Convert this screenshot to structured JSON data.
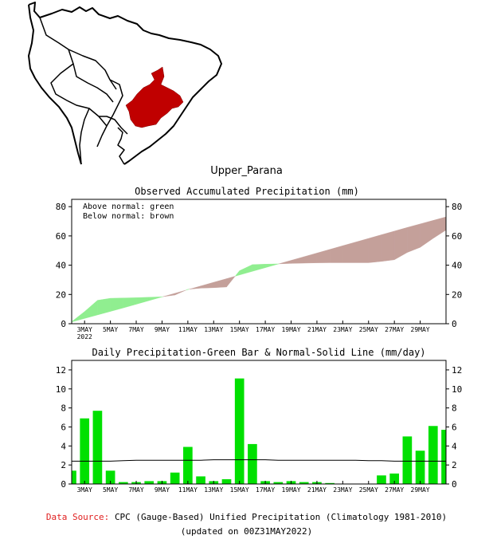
{
  "region_name": "Upper_Parana",
  "colors": {
    "above_normal": "#90ee90",
    "below_normal": "#c4a09a",
    "bar": "#00e000",
    "region_fill": "#c00000",
    "source_label": "#e02020"
  },
  "legend": {
    "above": "Above normal: green",
    "below": "Below normal: brown"
  },
  "x_labels": [
    {
      "day": 3,
      "label": "3MAY",
      "year": "2022"
    },
    {
      "day": 5,
      "label": "5MAY"
    },
    {
      "day": 7,
      "label": "7MAY"
    },
    {
      "day": 9,
      "label": "9MAY"
    },
    {
      "day": 11,
      "label": "11MAY"
    },
    {
      "day": 13,
      "label": "13MAY"
    },
    {
      "day": 15,
      "label": "15MAY"
    },
    {
      "day": 17,
      "label": "17MAY"
    },
    {
      "day": 19,
      "label": "19MAY"
    },
    {
      "day": 21,
      "label": "21MAY"
    },
    {
      "day": 23,
      "label": "23MAY"
    },
    {
      "day": 25,
      "label": "25MAY"
    },
    {
      "day": 27,
      "label": "27MAY"
    },
    {
      "day": 29,
      "label": "29MAY"
    }
  ],
  "chart_data": [
    {
      "type": "area",
      "title": "Observed Accumulated Precipitation (mm)",
      "xlabel": "",
      "ylabel": "",
      "xlim": [
        2,
        31
      ],
      "ylim": [
        0,
        85
      ],
      "yticks": [
        0,
        20,
        40,
        60,
        80
      ],
      "series": [
        {
          "name": "Observed accumulated",
          "x": [
            2,
            3,
            4,
            5,
            6,
            7,
            8,
            9,
            10,
            11,
            12,
            13,
            14,
            15,
            16,
            17,
            18,
            19,
            20,
            21,
            22,
            23,
            24,
            25,
            26,
            27,
            28,
            29,
            30,
            31
          ],
          "values": [
            1.4,
            8.3,
            16.0,
            17.4,
            17.6,
            17.8,
            18.1,
            18.4,
            19.6,
            23.5,
            24.3,
            24.6,
            25.1,
            36.2,
            40.4,
            40.7,
            40.9,
            41.2,
            41.4,
            41.6,
            41.7,
            41.7,
            41.7,
            41.7,
            42.6,
            43.7,
            48.7,
            52.2,
            58.3,
            64.0
          ]
        },
        {
          "name": "Normal accumulated",
          "x": [
            2,
            3,
            4,
            5,
            6,
            7,
            8,
            9,
            10,
            11,
            12,
            13,
            14,
            15,
            16,
            17,
            18,
            19,
            20,
            21,
            22,
            23,
            24,
            25,
            26,
            27,
            28,
            29,
            30,
            31
          ],
          "values": [
            1.2,
            3.6,
            6.0,
            8.4,
            10.8,
            13.3,
            15.8,
            18.3,
            20.8,
            23.3,
            25.8,
            28.3,
            30.8,
            33.3,
            35.8,
            38.3,
            40.8,
            43.3,
            45.8,
            48.3,
            50.8,
            53.3,
            55.8,
            58.3,
            60.8,
            63.3,
            65.8,
            68.2,
            70.6,
            73.0
          ]
        }
      ]
    },
    {
      "type": "bar",
      "title": "Daily Precipitation-Green Bar & Normal-Solid Line (mm/day)",
      "xlabel": "",
      "ylabel": "",
      "xlim": [
        2,
        31
      ],
      "ylim": [
        0,
        13
      ],
      "yticks": [
        0,
        2,
        4,
        6,
        8,
        10,
        12
      ],
      "categories": [
        2,
        3,
        4,
        5,
        6,
        7,
        8,
        9,
        10,
        11,
        12,
        13,
        14,
        15,
        16,
        17,
        18,
        19,
        20,
        21,
        22,
        23,
        24,
        25,
        26,
        27,
        28,
        29,
        30,
        31
      ],
      "series": [
        {
          "name": "Daily precipitation",
          "values": [
            1.4,
            6.9,
            7.7,
            1.4,
            0.2,
            0.2,
            0.3,
            0.3,
            1.2,
            3.9,
            0.8,
            0.3,
            0.5,
            11.1,
            4.2,
            0.3,
            0.2,
            0.3,
            0.2,
            0.2,
            0.1,
            0,
            0,
            0,
            0.9,
            1.1,
            5.0,
            3.5,
            6.1,
            5.7
          ]
        },
        {
          "name": "Normal",
          "values": [
            2.4,
            2.4,
            2.4,
            2.4,
            2.45,
            2.5,
            2.5,
            2.5,
            2.5,
            2.5,
            2.5,
            2.55,
            2.55,
            2.55,
            2.55,
            2.55,
            2.5,
            2.5,
            2.5,
            2.5,
            2.5,
            2.5,
            2.5,
            2.45,
            2.45,
            2.4,
            2.4,
            2.4,
            2.4,
            2.4
          ]
        }
      ]
    }
  ],
  "footer": {
    "source_label": "Data Source:",
    "source_text": "CPC (Gauge-Based) Unified Precipitation (Climatology 1981-2010)",
    "updated_text": "(updated on 00Z31MAY2022)"
  }
}
